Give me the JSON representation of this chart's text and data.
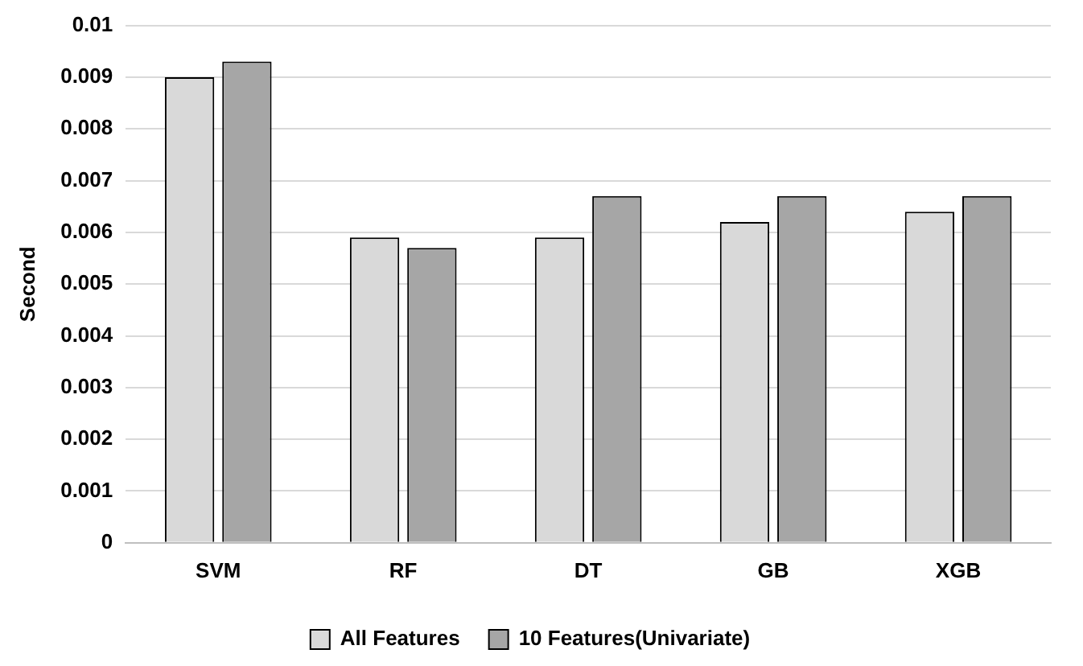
{
  "chart_data": {
    "type": "bar",
    "ylabel": "Second",
    "categories": [
      "SVM",
      "RF",
      "DT",
      "GB",
      "XGB"
    ],
    "series": [
      {
        "name": "All Features",
        "color": "#d9d9d9",
        "values": [
          0.009,
          0.0059,
          0.0059,
          0.0062,
          0.0064
        ]
      },
      {
        "name": "10 Features(Univariate)",
        "color": "#a6a6a6",
        "values": [
          0.0093,
          0.0057,
          0.0067,
          0.0067,
          0.0067
        ]
      }
    ],
    "ylim": [
      0,
      0.01
    ],
    "yticks": [
      0,
      0.001,
      0.002,
      0.003,
      0.004,
      0.005,
      0.006,
      0.007,
      0.008,
      0.009,
      0.01
    ],
    "grid": "y",
    "legend": "bottom"
  }
}
